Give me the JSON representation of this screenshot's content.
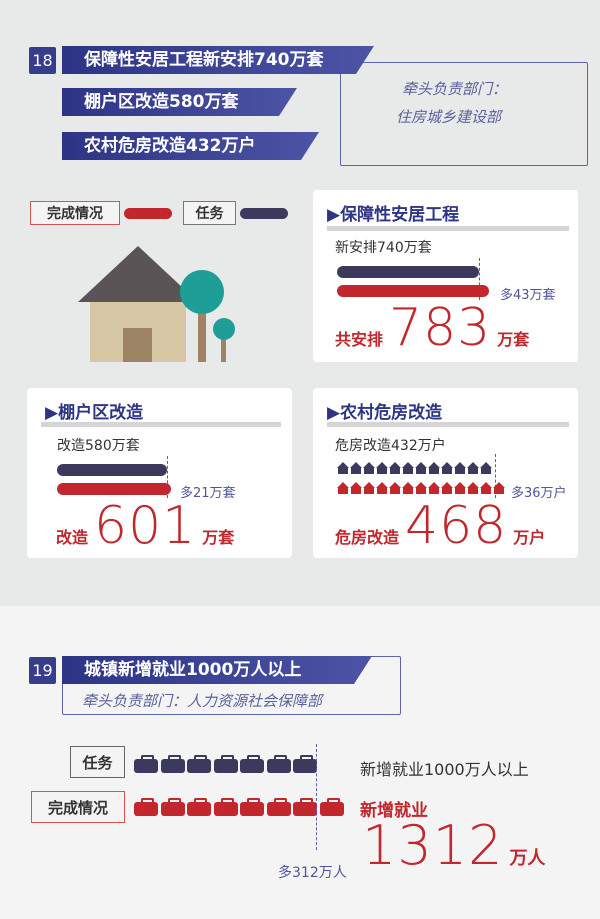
{
  "section18": {
    "number": "18",
    "banners": [
      "保障性安居工程新安排740万套",
      "棚户区改造580万套",
      "农村危房改造432万户"
    ],
    "dept_label": "牵头负责部门：",
    "dept": "住房城乡建设部",
    "legend": {
      "done": "完成情况",
      "task": "任务",
      "done_color": "#c1272d",
      "task_color": "#3b3a5c"
    },
    "cards": [
      {
        "title": "保障性安居工程",
        "task": "新安排740万套",
        "task_value": 740,
        "done_value": 783,
        "more": "多43万套",
        "total_prefix": "共安排",
        "total": "783",
        "unit": "万套"
      },
      {
        "title": "棚户区改造",
        "task": "改造580万套",
        "task_value": 580,
        "done_value": 601,
        "more": "多21万套",
        "total_prefix": "改造",
        "total": "601",
        "unit": "万套"
      },
      {
        "title": "农村危房改造",
        "task": "危房改造432万户",
        "task_value": 432,
        "done_value": 468,
        "more": "多36万户",
        "total_prefix": "危房改造",
        "total": "468",
        "unit": "万户",
        "task_icons": 12,
        "done_icons": 13
      }
    ]
  },
  "section19": {
    "number": "19",
    "banner": "城镇新增就业1000万人以上",
    "dept": "牵头负责部门：人力资源社会保障部",
    "task_label": "任务",
    "done_label": "完成情况",
    "task_icons": 7,
    "done_icons": 8,
    "task_text": "新增就业1000万人以上",
    "done_prefix": "新增就业",
    "done_total": "1312",
    "unit": "万人",
    "more": "多312万人"
  }
}
